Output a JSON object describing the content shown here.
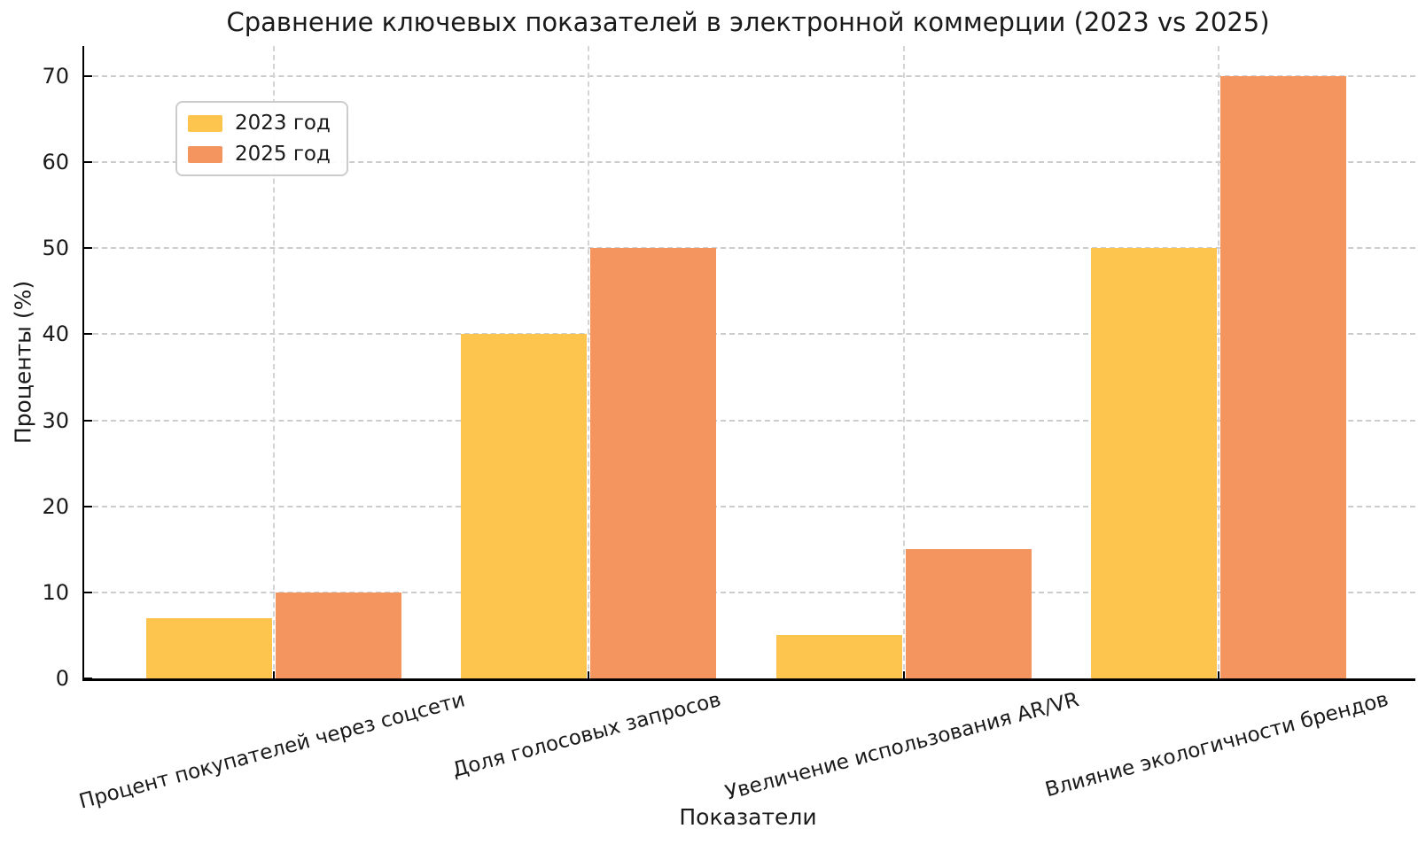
{
  "chart_data": {
    "type": "bar",
    "title": "Сравнение ключевых показателей в электронной коммерции (2023 vs 2025)",
    "xlabel": "Показатели",
    "ylabel": "Проценты (%)",
    "categories": [
      "Процент покупателей через соцсети",
      "Доля голосовых запросов",
      "Увеличение использования AR/VR",
      "Влияние экологичности брендов"
    ],
    "series": [
      {
        "name": "2023 год",
        "color": "#FDC44E",
        "values": [
          7,
          40,
          5,
          50
        ]
      },
      {
        "name": "2025 год",
        "color": "#F4955F",
        "values": [
          10,
          50,
          15,
          70
        ]
      }
    ],
    "ylim": [
      0,
      73.5
    ],
    "yticks": [
      0,
      10,
      20,
      30,
      40,
      50,
      60,
      70
    ],
    "grid": true,
    "grid_style": "dashed",
    "grid_color": "#cccccc",
    "legend_position": "upper-left",
    "background": "#ffffff",
    "text_color": "#1a1a1a",
    "xtick_rotation_deg": 15
  }
}
